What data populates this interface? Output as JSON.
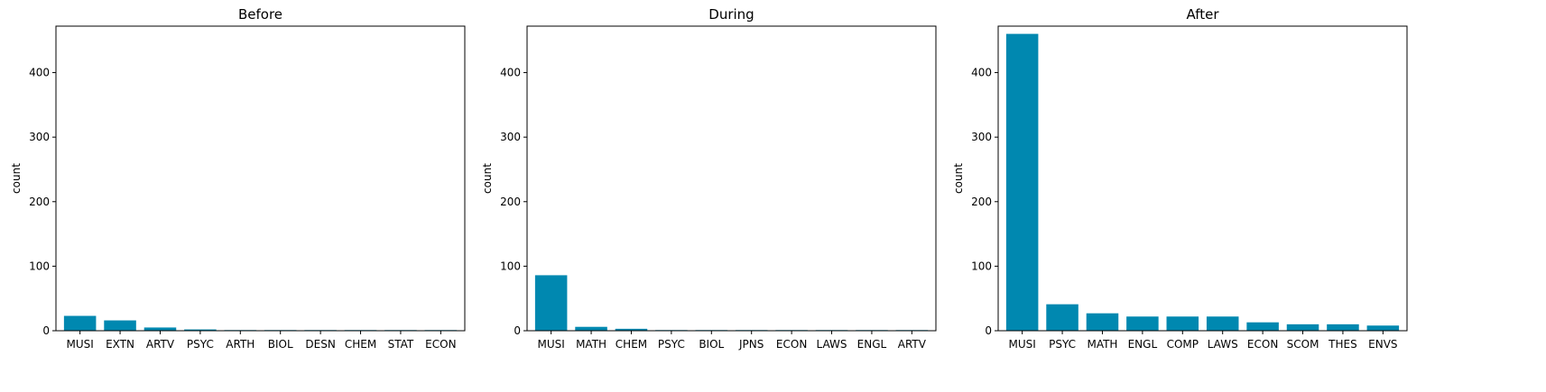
{
  "chart_data": [
    {
      "type": "bar",
      "title": "Before",
      "xlabel": "",
      "ylabel": "count",
      "ylim": [
        0,
        472
      ],
      "yticks": [
        0,
        100,
        200,
        300,
        400
      ],
      "color": "#0088b0",
      "categories": [
        "MUSI",
        "EXTN",
        "ARTV",
        "PSYC",
        "ARTH",
        "BIOL",
        "DESN",
        "CHEM",
        "STAT",
        "ECON"
      ],
      "values": [
        23,
        16,
        5,
        2,
        1,
        1,
        1,
        1,
        1,
        1
      ]
    },
    {
      "type": "bar",
      "title": "During",
      "xlabel": "",
      "ylabel": "count",
      "ylim": [
        0,
        472
      ],
      "yticks": [
        0,
        100,
        200,
        300,
        400
      ],
      "color": "#0088b0",
      "categories": [
        "MUSI",
        "MATH",
        "CHEM",
        "PSYC",
        "BIOL",
        "JPNS",
        "ECON",
        "LAWS",
        "ENGL",
        "ARTV"
      ],
      "values": [
        86,
        6,
        3,
        1,
        1,
        1,
        1,
        1,
        1,
        1
      ]
    },
    {
      "type": "bar",
      "title": "After",
      "xlabel": "",
      "ylabel": "count",
      "ylim": [
        0,
        472
      ],
      "yticks": [
        0,
        100,
        200,
        300,
        400
      ],
      "color": "#0088b0",
      "categories": [
        "MUSI",
        "PSYC",
        "MATH",
        "ENGL",
        "COMP",
        "LAWS",
        "ECON",
        "SCOM",
        "THES",
        "ENVS"
      ],
      "values": [
        460,
        41,
        27,
        22,
        22,
        22,
        13,
        10,
        10,
        8
      ]
    }
  ]
}
